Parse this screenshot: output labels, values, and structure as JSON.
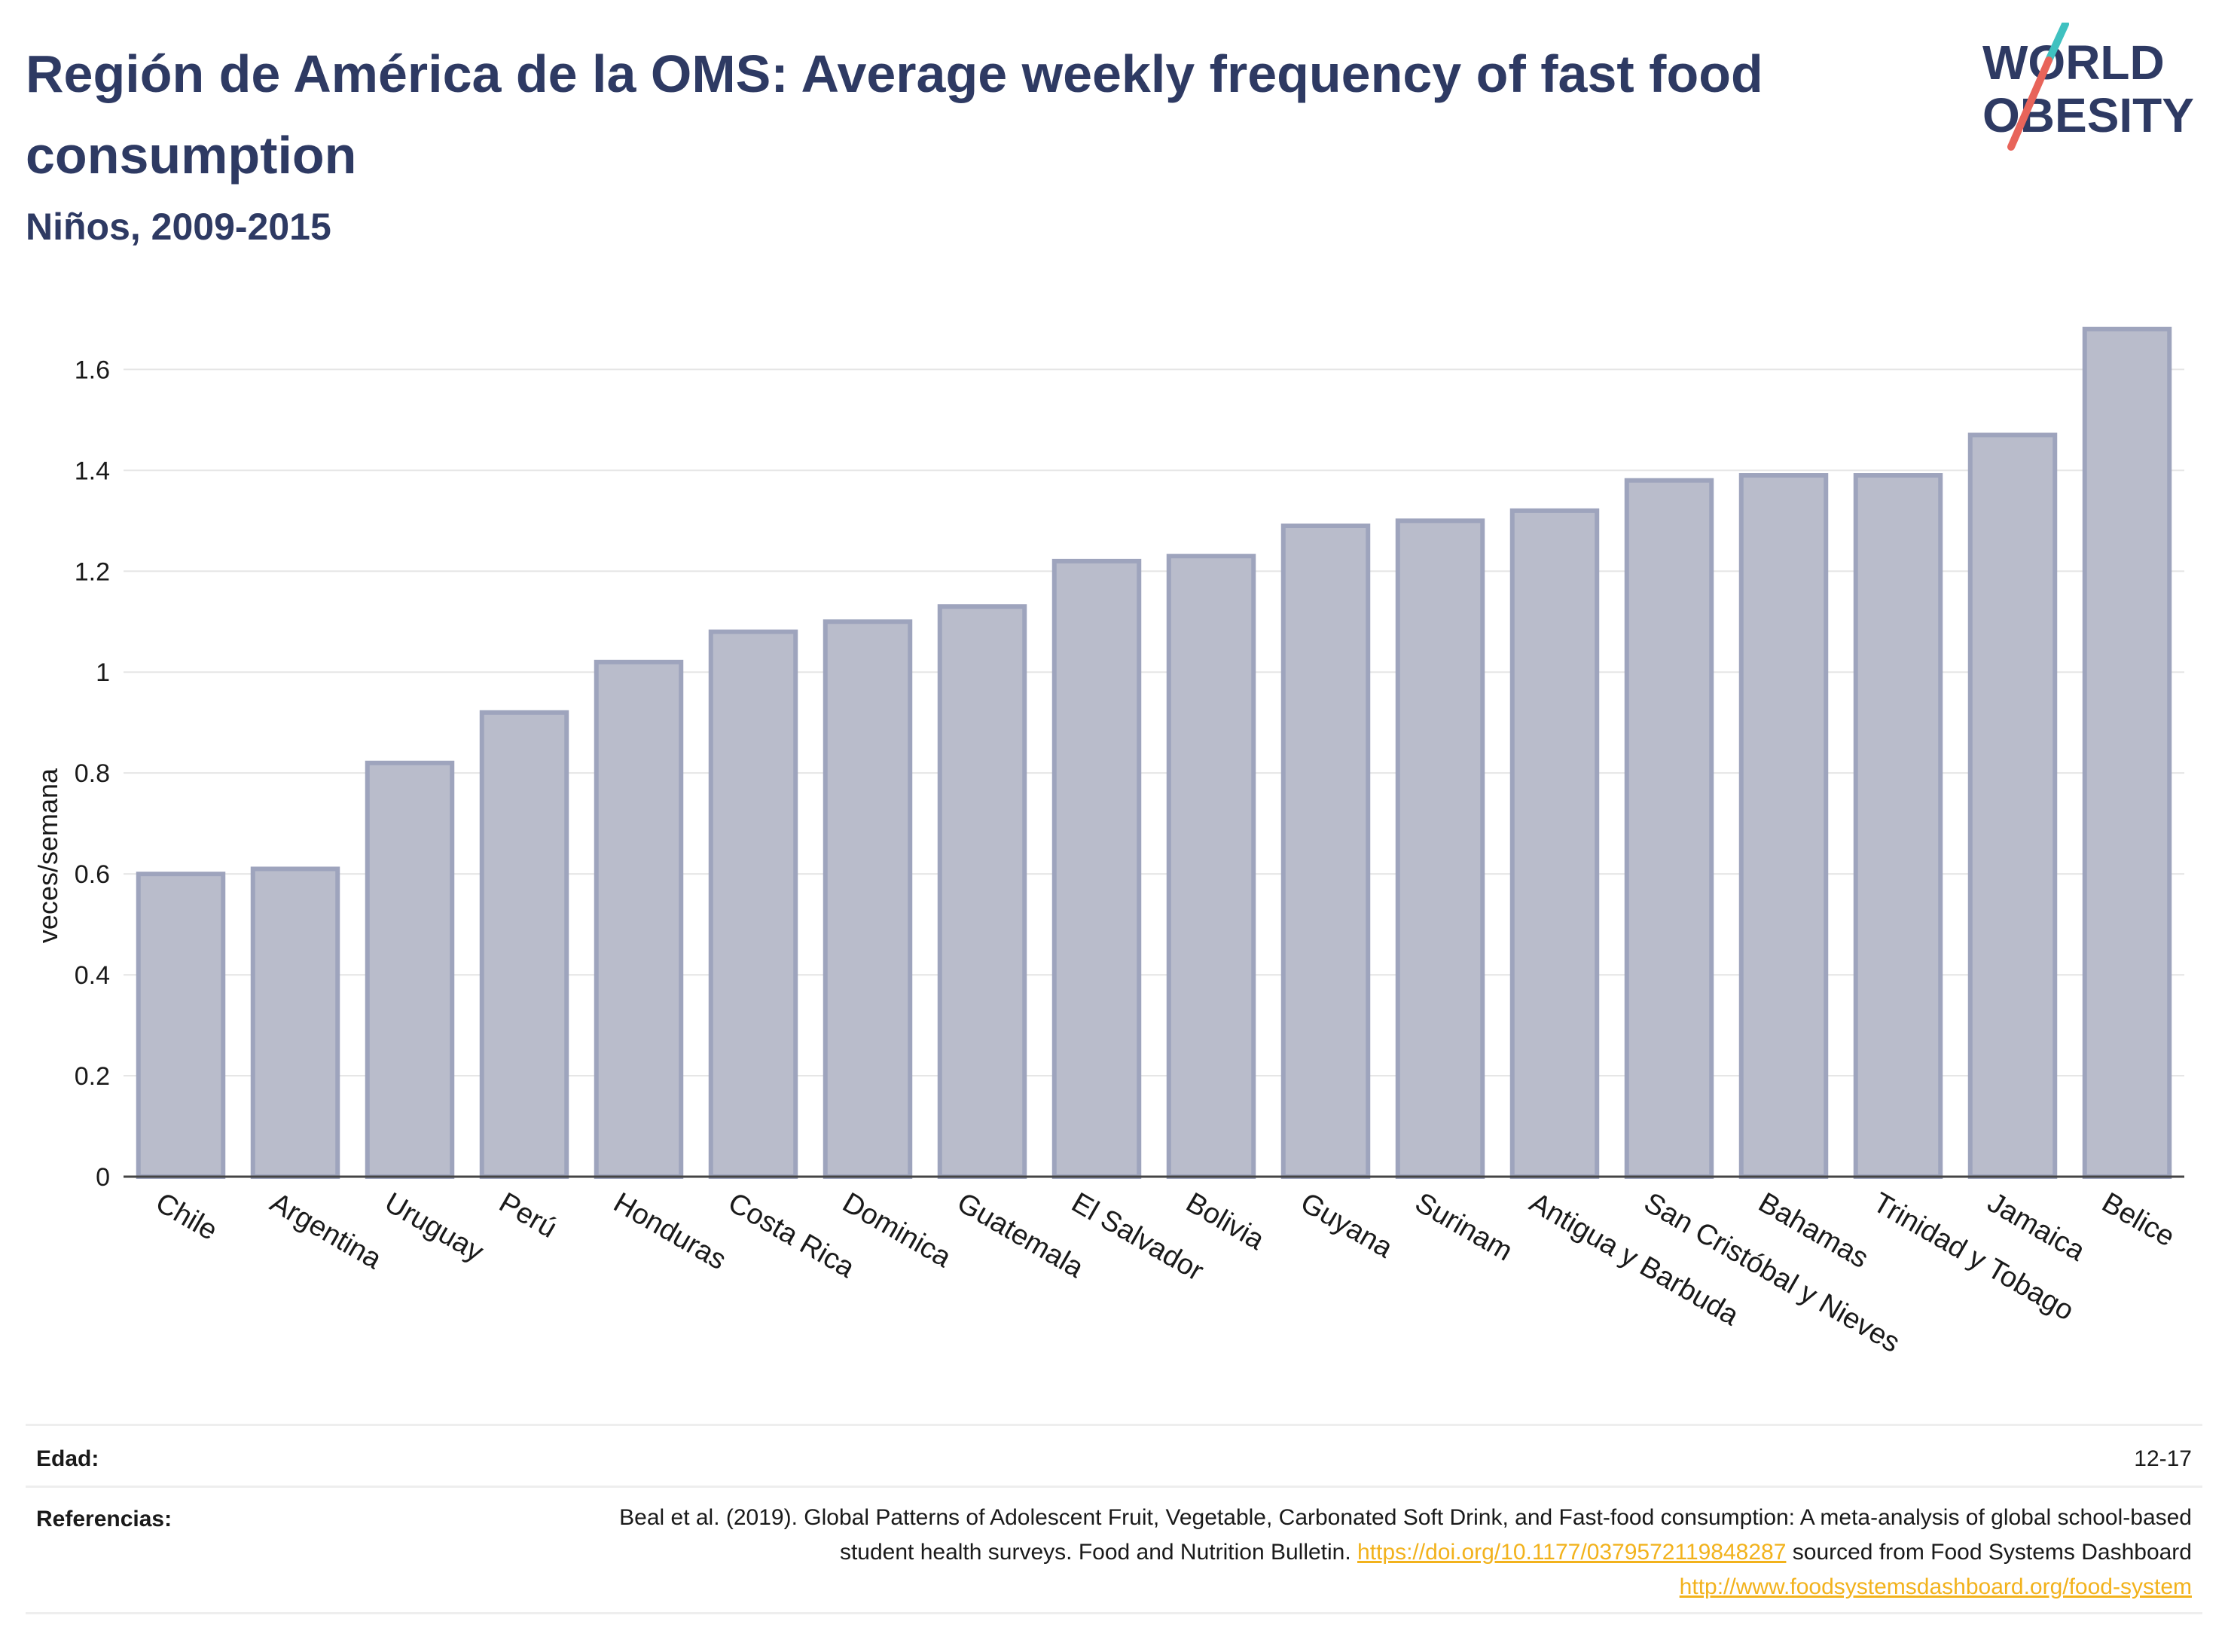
{
  "header": {
    "title": "Región de América de la OMS: Average weekly frequency of fast food consumption",
    "subtitle": "Niños, 2009-2015"
  },
  "logo": {
    "line1": "WORLD",
    "line2": "OBESITY",
    "text_color": "#2e3a63",
    "slash_top_color": "#3fc1c0",
    "slash_bottom_color": "#e8645a"
  },
  "chart_data": {
    "type": "bar",
    "ylabel": "veces/semana",
    "ylim": [
      0,
      1.72
    ],
    "yticks": [
      0,
      0.2,
      0.4,
      0.6,
      0.8,
      1,
      1.2,
      1.4,
      1.6
    ],
    "ytick_labels": [
      "0",
      "0.2",
      "0.4",
      "0.6",
      "0.8",
      "1",
      "1.2",
      "1.4",
      "1.6"
    ],
    "grid": true,
    "bar_color": "#b9bccb",
    "bar_edge_color": "#9ea4bd",
    "categories": [
      "Chile",
      "Argentina",
      "Uruguay",
      "Perú",
      "Honduras",
      "Costa Rica",
      "Dominica",
      "Guatemala",
      "El Salvador",
      "Bolivia",
      "Guyana",
      "Surinam",
      "Antigua y Barbuda",
      "San Cristóbal y Nieves",
      "Bahamas",
      "Trinidad y Tobago",
      "Jamaica",
      "Belice"
    ],
    "values": [
      0.6,
      0.61,
      0.82,
      0.92,
      1.02,
      1.08,
      1.1,
      1.13,
      1.22,
      1.23,
      1.29,
      1.3,
      1.32,
      1.38,
      1.39,
      1.39,
      1.47,
      1.68
    ]
  },
  "meta": {
    "age_label": "Edad:",
    "age_value": "12-17",
    "ref_label": "Referencias:",
    "ref_text_1": "Beal et al. (2019). Global Patterns of Adolescent Fruit, Vegetable, Carbonated Soft Drink, and Fast-food consumption: A meta-analysis of global school-based student health surveys. Food and Nutrition Bulletin. ",
    "ref_link_1": "https://doi.org/10.1177/0379572119848287",
    "ref_text_2": " sourced from Food Systems Dashboard ",
    "ref_link_2": "http://www.foodsystemsdashboard.org/food-system"
  }
}
